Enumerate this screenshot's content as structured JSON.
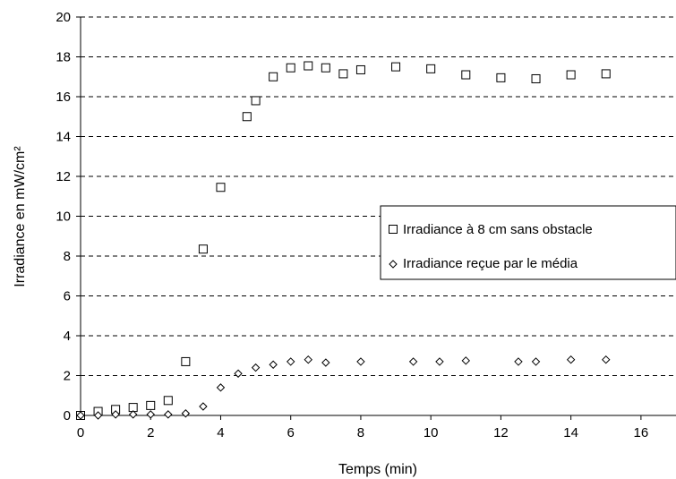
{
  "chart_data": {
    "type": "scatter",
    "xlabel": "Temps (min)",
    "ylabel": "Irradiance en mW/cm²",
    "xlim": [
      0,
      17
    ],
    "ylim": [
      0,
      20
    ],
    "x_ticks": [
      0,
      2,
      4,
      6,
      8,
      10,
      12,
      14,
      16
    ],
    "y_ticks": [
      0,
      2,
      4,
      6,
      8,
      10,
      12,
      14,
      16,
      18,
      20
    ],
    "x_tick_labels": [
      "0",
      "2",
      "4",
      "6",
      "8",
      "10",
      "12",
      "14",
      "16"
    ],
    "y_tick_labels": [
      "0",
      "2",
      "4",
      "6",
      "8",
      "10",
      "12",
      "14",
      "16",
      "18",
      "20"
    ],
    "grid": "horizontal dashed",
    "legend_position": "right",
    "series": [
      {
        "name": "Irradiance à 8 cm sans obstacle",
        "marker": "square",
        "points": [
          [
            0,
            0.0
          ],
          [
            0.5,
            0.2
          ],
          [
            1.0,
            0.3
          ],
          [
            1.5,
            0.4
          ],
          [
            2.0,
            0.5
          ],
          [
            2.5,
            0.75
          ],
          [
            3.0,
            2.7
          ],
          [
            3.5,
            8.35
          ],
          [
            4.0,
            11.45
          ],
          [
            4.75,
            15.0
          ],
          [
            5.0,
            15.8
          ],
          [
            5.5,
            17.0
          ],
          [
            6.0,
            17.45
          ],
          [
            6.5,
            17.55
          ],
          [
            7.0,
            17.45
          ],
          [
            7.5,
            17.15
          ],
          [
            8.0,
            17.35
          ],
          [
            9.0,
            17.5
          ],
          [
            10.0,
            17.4
          ],
          [
            11.0,
            17.1
          ],
          [
            12.0,
            16.95
          ],
          [
            13.0,
            16.9
          ],
          [
            14.0,
            17.1
          ],
          [
            15.0,
            17.15
          ]
        ]
      },
      {
        "name": "Irradiance reçue par le média",
        "marker": "diamond",
        "points": [
          [
            0,
            0.0
          ],
          [
            0.5,
            0.0
          ],
          [
            1.0,
            0.05
          ],
          [
            1.5,
            0.05
          ],
          [
            2.0,
            0.05
          ],
          [
            2.5,
            0.05
          ],
          [
            3.0,
            0.1
          ],
          [
            3.5,
            0.45
          ],
          [
            4.0,
            1.4
          ],
          [
            4.5,
            2.1
          ],
          [
            5.0,
            2.4
          ],
          [
            5.5,
            2.55
          ],
          [
            6.0,
            2.7
          ],
          [
            6.5,
            2.8
          ],
          [
            7.0,
            2.65
          ],
          [
            8.0,
            2.7
          ],
          [
            9.5,
            2.7
          ],
          [
            10.25,
            2.7
          ],
          [
            11.0,
            2.75
          ],
          [
            12.5,
            2.7
          ],
          [
            13.0,
            2.7
          ],
          [
            14.0,
            2.8
          ],
          [
            15.0,
            2.8
          ]
        ]
      }
    ]
  }
}
